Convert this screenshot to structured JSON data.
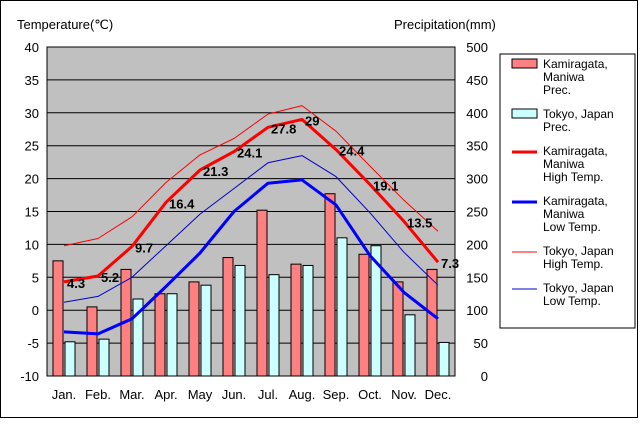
{
  "left_axis_title": "Temperature(℃)",
  "right_axis_title": "Precipitation(mm)",
  "colors": {
    "plot_bg": "#c0c0c0",
    "kamiragata_prec": "#ff8080",
    "tokyo_prec": "#ccffff",
    "kamiragata_high": "#ff0000",
    "kamiragata_low": "#0000ff",
    "tokyo_high": "#ff0000",
    "tokyo_low": "#0000cc"
  },
  "legend": [
    {
      "key": "kamiragata_prec",
      "type": "box",
      "lines": [
        "Kamiragata,",
        "Maniwa",
        "Prec."
      ]
    },
    {
      "key": "tokyo_prec",
      "type": "box",
      "lines": [
        "Tokyo, Japan",
        "Prec."
      ]
    },
    {
      "key": "kamiragata_high",
      "type": "thick",
      "lines": [
        "Kamiragata,",
        "Maniwa",
        "High Temp."
      ]
    },
    {
      "key": "kamiragata_low",
      "type": "thick",
      "lines": [
        "Kamiragata,",
        "Maniwa",
        "Low Temp."
      ]
    },
    {
      "key": "tokyo_high",
      "type": "thin",
      "lines": [
        "Tokyo, Japan",
        "High Temp."
      ]
    },
    {
      "key": "tokyo_low",
      "type": "thin",
      "lines": [
        "Tokyo, Japan",
        "Low Temp."
      ]
    }
  ],
  "chart_data": {
    "type": "bar",
    "categories": [
      "Jan.",
      "Feb.",
      "Mar.",
      "Apr.",
      "May",
      "Jun.",
      "Jul.",
      "Aug.",
      "Sep.",
      "Oct.",
      "Nov.",
      "Dec."
    ],
    "y_left": {
      "label": "Temperature(℃)",
      "range": [
        -10,
        40
      ],
      "ticks": [
        -10,
        -5,
        0,
        5,
        10,
        15,
        20,
        25,
        30,
        35,
        40
      ]
    },
    "y_right": {
      "label": "Precipitation(mm)",
      "range": [
        0,
        500
      ],
      "ticks": [
        0,
        50,
        100,
        150,
        200,
        250,
        300,
        350,
        400,
        450,
        500
      ]
    },
    "grid": true,
    "legend_position": "right",
    "series": [
      {
        "key": "kamiragata_prec",
        "name": "Kamiragata, Maniwa Prec.",
        "kind": "bar",
        "axis": "right",
        "values": [
          175,
          105,
          162,
          125,
          143,
          180,
          252,
          170,
          277,
          185,
          143,
          162
        ]
      },
      {
        "key": "tokyo_prec",
        "name": "Tokyo, Japan Prec.",
        "kind": "bar",
        "axis": "right",
        "values": [
          52,
          56,
          117,
          125,
          138,
          168,
          154,
          168,
          210,
          198,
          93,
          51
        ]
      },
      {
        "key": "kamiragata_high",
        "name": "Kamiragata, Maniwa High Temp.",
        "kind": "line",
        "axis": "left",
        "width": 3,
        "values": [
          4.3,
          5.2,
          9.7,
          16.4,
          21.3,
          24.1,
          27.8,
          29,
          24.4,
          19.1,
          13.5,
          7.3
        ],
        "labels": [
          "4.3",
          "5.2",
          "9.7",
          "16.4",
          "21.3",
          "24.1",
          "27.8",
          "29",
          "24.4",
          "19.1",
          "13.5",
          "7.3"
        ]
      },
      {
        "key": "kamiragata_low",
        "name": "Kamiragata, Maniwa Low Temp.",
        "kind": "line",
        "axis": "left",
        "width": 3,
        "values": [
          -3.3,
          -3.6,
          -1.3,
          3.6,
          8.7,
          15.0,
          19.3,
          19.8,
          16.0,
          8.3,
          2.7,
          -1.3
        ]
      },
      {
        "key": "tokyo_high",
        "name": "Tokyo, Japan High Temp.",
        "kind": "line",
        "axis": "left",
        "width": 1,
        "values": [
          9.8,
          10.9,
          14.2,
          19.4,
          23.6,
          26.1,
          29.8,
          31.1,
          27.2,
          21.9,
          16.7,
          12.0
        ]
      },
      {
        "key": "tokyo_low",
        "name": "Tokyo, Japan Low Temp.",
        "kind": "line",
        "axis": "left",
        "width": 1,
        "values": [
          1.2,
          2.1,
          5.0,
          9.8,
          14.6,
          18.5,
          22.4,
          23.5,
          20.3,
          14.8,
          8.8,
          3.8
        ]
      }
    ]
  }
}
